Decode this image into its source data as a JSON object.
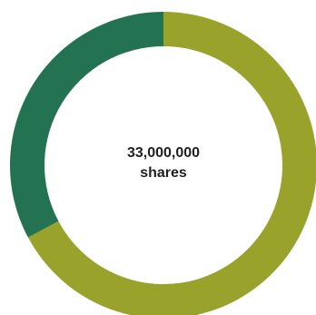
{
  "chart_data": {
    "type": "pie",
    "style": "donut",
    "center_text": {
      "line1": "33,000,000",
      "line2": "shares"
    },
    "slices": [
      {
        "value": 67.2,
        "color": "#99a32b"
      },
      {
        "value": 32.8,
        "color": "#237353"
      }
    ],
    "start_angle_deg": 0,
    "direction": "clockwise"
  }
}
